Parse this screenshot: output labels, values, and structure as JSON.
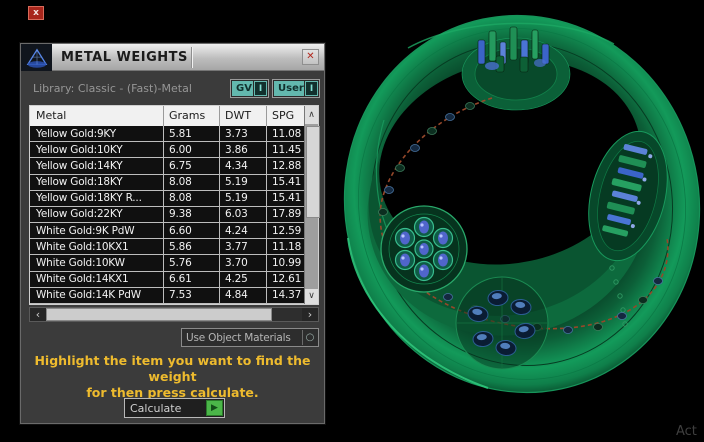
{
  "misc": {
    "topleft_close": "x",
    "viewport_watermark": "Act"
  },
  "window": {
    "title": "METAL WEIGHTS",
    "close_icon": "✕"
  },
  "library": {
    "label": "Library: Classic - (Fast)-Metal",
    "gv_button": {
      "label": "GV",
      "indicator": "I"
    },
    "user_button": {
      "label": "User",
      "indicator": "I"
    }
  },
  "table": {
    "headers": [
      "Metal",
      "Grams",
      "DWT",
      "SPG"
    ],
    "rows": [
      [
        "Yellow Gold:9KY",
        "5.81",
        "3.73",
        "11.08"
      ],
      [
        "Yellow Gold:10KY",
        "6.00",
        "3.86",
        "11.45"
      ],
      [
        "Yellow Gold:14KY",
        "6.75",
        "4.34",
        "12.88"
      ],
      [
        "Yellow Gold:18KY",
        "8.08",
        "5.19",
        "15.41"
      ],
      [
        "Yellow Gold:18KY R...",
        "8.08",
        "5.19",
        "15.41"
      ],
      [
        "Yellow Gold:22KY",
        "9.38",
        "6.03",
        "17.89"
      ],
      [
        "White Gold:9K PdW",
        "6.60",
        "4.24",
        "12.59"
      ],
      [
        "White Gold:10KX1",
        "5.86",
        "3.77",
        "11.18"
      ],
      [
        "White Gold:10KW",
        "5.76",
        "3.70",
        "10.99"
      ],
      [
        "White Gold:14KX1",
        "6.61",
        "4.25",
        "12.61"
      ],
      [
        "White Gold:14K PdW",
        "7.53",
        "4.84",
        "14.37"
      ]
    ]
  },
  "scrollbar": {
    "up": "∧",
    "down": "∨",
    "left": "‹",
    "right": "›"
  },
  "materials_dropdown": {
    "label": "Use Object Materials",
    "icon": "○"
  },
  "instruction": {
    "line1": "Highlight the item you want to find the weight",
    "line2": "for then press calculate."
  },
  "calculate_button": {
    "label": "Calculate",
    "icon": "▶"
  },
  "colors": {
    "teal": "#63b8ae",
    "yellow": "#eebb2e",
    "red": "#b2281e",
    "green_btn": "#4bb649",
    "ring_green": "#139a5a",
    "gem_blue": "#5065cb"
  }
}
